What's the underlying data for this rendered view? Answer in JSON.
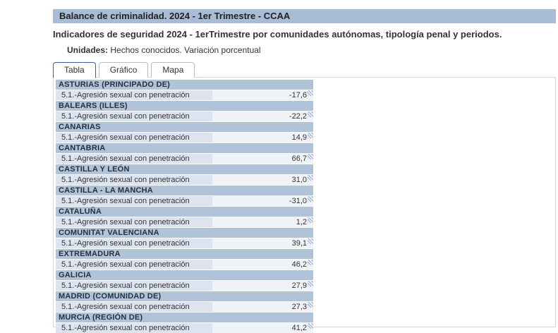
{
  "header": {
    "title": "Balance de criminalidad. 2024 - 1er Trimestre - CCAA",
    "subtitle": "Indicadores de seguridad 2024 - 1erTrimestre por comunidades autónomas, tipología penal y periodos.",
    "units_label": "Unidades:",
    "units_value": "Hechos conocidos. Variación porcentual"
  },
  "tabs": [
    {
      "label": "Tabla",
      "active": true
    },
    {
      "label": "Gráfico",
      "active": false
    },
    {
      "label": "Mapa",
      "active": false
    }
  ],
  "table": {
    "indicator": "5.1.-Agresión sexual con penetración",
    "regions": [
      {
        "name": "ASTURIAS (PRINCIPADO DE)",
        "value": "-17,6"
      },
      {
        "name": "BALEARS (ILLES)",
        "value": "-22,2"
      },
      {
        "name": "CANARIAS",
        "value": "14,9"
      },
      {
        "name": "CANTABRIA",
        "value": "66,7"
      },
      {
        "name": "CASTILLA Y LEÓN",
        "value": "31,0"
      },
      {
        "name": "CASTILLA - LA MANCHA",
        "value": "-31,0"
      },
      {
        "name": "CATALUÑA",
        "value": "1,2"
      },
      {
        "name": "COMUNITAT VALENCIANA",
        "value": "39,1"
      },
      {
        "name": "EXTREMADURA",
        "value": "46,2"
      },
      {
        "name": "GALICIA",
        "value": "27,9"
      },
      {
        "name": "MADRID (COMUNIDAD DE)",
        "value": "27,3"
      },
      {
        "name": "MURCIA (REGIÓN DE)",
        "value": "41,2"
      }
    ]
  },
  "colors": {
    "title_bar_bg": "#a8bbd7",
    "region_header_bg": "#b1c3d9",
    "row_label_bg": "#dee4ef",
    "row_value_bg": "#eff2f7",
    "panel_border": "#ccd9e8",
    "active_tab_border": "#35609f",
    "text": "#333333"
  }
}
